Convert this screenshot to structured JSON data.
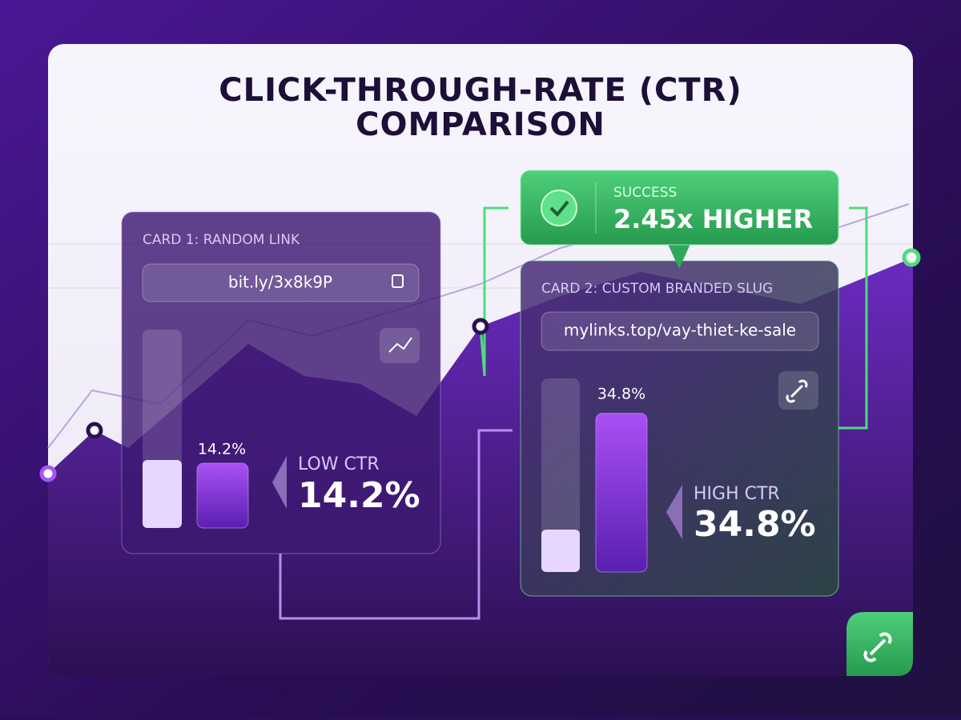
{
  "title_lines": [
    "CLICK-THROUGH-RATE (CTR)",
    "COMPARISON"
  ],
  "badge": {
    "label": "SUCCESS",
    "text": "2.45x HIGHER"
  },
  "cards": [
    {
      "label": "CARD 1: RANDOM LINK",
      "url": "bit.ly/3x8k9P",
      "value": 14.2,
      "value_label": "14.2%",
      "ctr_label": "LOW CTR",
      "ctr_value": "14.2%"
    },
    {
      "label": "CARD 2: CUSTOM BRANDED SLUG",
      "url": "mylinks.top/vay-thiet-ke-sale",
      "value": 34.8,
      "value_label": "34.8%",
      "ctr_label": "HIGH CTR",
      "ctr_value": "34.8%"
    }
  ]
}
